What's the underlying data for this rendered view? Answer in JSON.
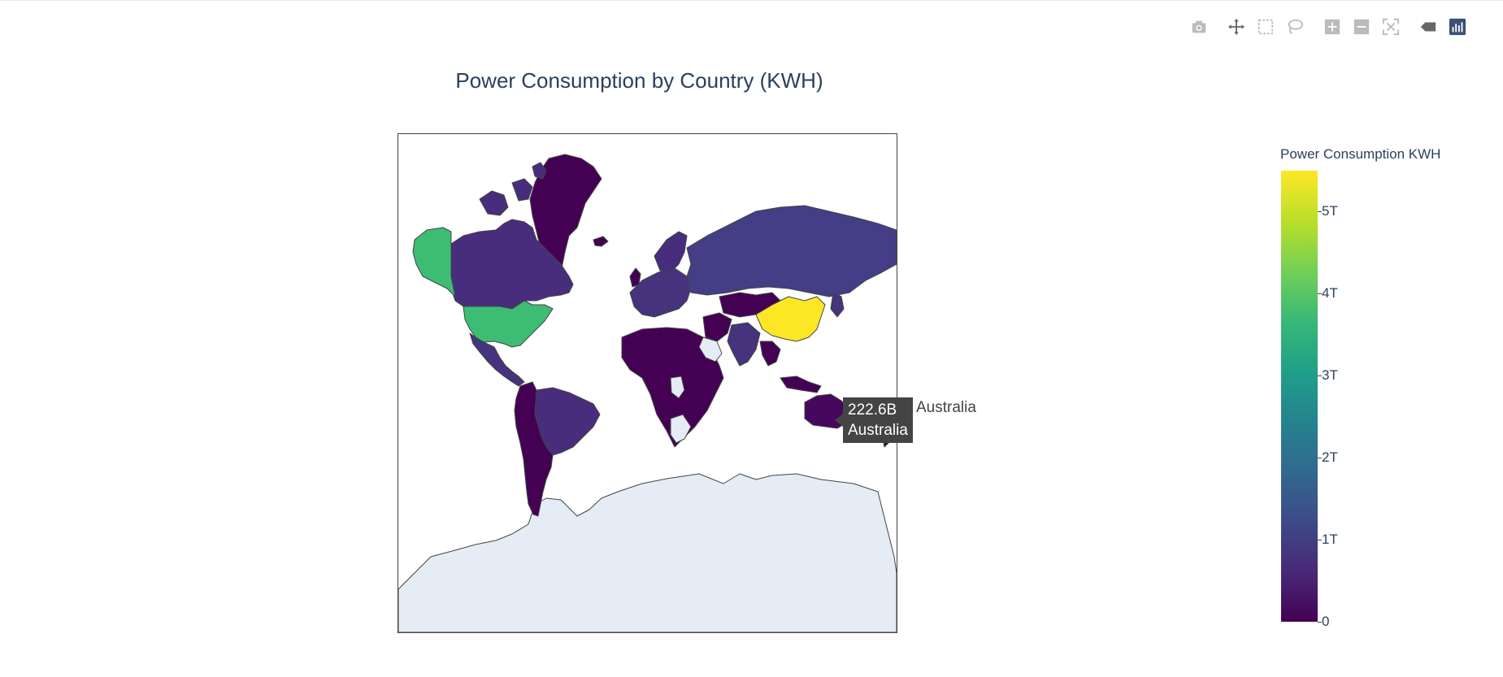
{
  "title": "Power Consumption by Country (KWH)",
  "modebar": {
    "buttons": [
      {
        "name": "camera-icon",
        "label": "Download plot as a png"
      },
      {
        "name": "pan-icon",
        "label": "Pan"
      },
      {
        "name": "box-select-icon",
        "label": "Box Select"
      },
      {
        "name": "lasso-select-icon",
        "label": "Lasso Select"
      },
      {
        "name": "zoom-in-icon",
        "label": "Zoom in"
      },
      {
        "name": "zoom-out-icon",
        "label": "Zoom out"
      },
      {
        "name": "reset-view-icon",
        "label": "Reset view"
      },
      {
        "name": "hover-closest-icon",
        "label": "Show closest data on hover"
      },
      {
        "name": "plotly-logo-icon",
        "label": "Produced with Plotly"
      }
    ]
  },
  "chart_data": {
    "type": "choropleth",
    "projection": "mercator",
    "colorscale": "viridis",
    "colorbar": {
      "title": "Power Consumption KWH",
      "range": [
        0,
        5.5
      ],
      "units": "trillion KWH",
      "ticks": [
        "0",
        "1T",
        "2T",
        "3T",
        "4T",
        "5T"
      ],
      "tick_values": [
        0,
        1,
        2,
        3,
        4,
        5
      ]
    },
    "regions": [
      {
        "country": "China",
        "value": 5.5,
        "color": "#fde725"
      },
      {
        "country": "United States",
        "value": 3.9,
        "color": "#3dbc74"
      },
      {
        "country": "Russia",
        "value": 1.0,
        "color": "#433e85"
      },
      {
        "country": "India",
        "value": 0.9,
        "color": "#45337d"
      },
      {
        "country": "Canada",
        "value": 0.5,
        "color": "#472d7b"
      },
      {
        "country": "Brazil",
        "value": 0.5,
        "color": "#472d7b"
      },
      {
        "country": "Japan",
        "value": 0.9,
        "color": "#45337d"
      },
      {
        "country": "Australia",
        "value": 0.2226,
        "color": "#46085c"
      },
      {
        "country": "Greenland",
        "value": 0.0,
        "color": "#440154"
      },
      {
        "country": "Antarctica",
        "value": null,
        "color": "#e5ecf6"
      }
    ],
    "hover": {
      "value": "222.6B",
      "country": "Australia",
      "trace": "Australia"
    }
  }
}
